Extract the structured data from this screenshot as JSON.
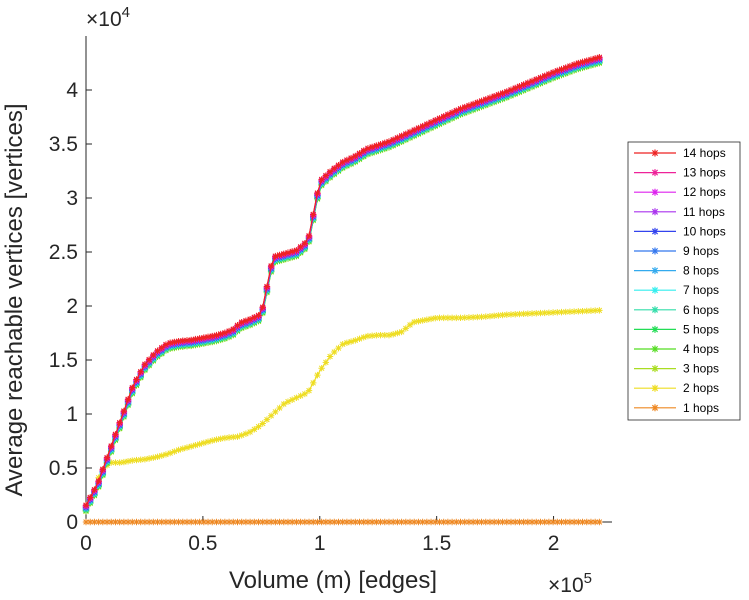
{
  "chart_data": {
    "type": "line",
    "xlabel": "Volume (m) [edges]",
    "ylabel": "Average reachable vertices [vertices]",
    "x_multiplier_label": "×10",
    "x_multiplier_exp": "5",
    "y_multiplier_label": "×10",
    "y_multiplier_exp": "4",
    "xlim": [
      0,
      225000
    ],
    "ylim": [
      0,
      45000
    ],
    "x_ticks": [
      0,
      50000,
      100000,
      150000,
      200000
    ],
    "x_tick_labels": [
      "0",
      "0.5",
      "1",
      "1.5",
      "2"
    ],
    "y_ticks": [
      0,
      5000,
      10000,
      15000,
      20000,
      25000,
      30000,
      35000,
      40000
    ],
    "y_tick_labels": [
      "0",
      "0.5",
      "1",
      "1.5",
      "2",
      "2.5",
      "3",
      "3.5",
      "4"
    ],
    "grid": false,
    "legend_position": "right",
    "curves": {
      "high": [
        [
          0,
          1000
        ],
        [
          5000,
          3000
        ],
        [
          10000,
          6000
        ],
        [
          15000,
          9000
        ],
        [
          20000,
          12000
        ],
        [
          25000,
          14000
        ],
        [
          30000,
          15200
        ],
        [
          35000,
          16000
        ],
        [
          40000,
          16200
        ],
        [
          45000,
          16300
        ],
        [
          50000,
          16500
        ],
        [
          55000,
          16700
        ],
        [
          60000,
          17000
        ],
        [
          63000,
          17300
        ],
        [
          66000,
          17900
        ],
        [
          70000,
          18200
        ],
        [
          75000,
          18700
        ],
        [
          80000,
          24000
        ],
        [
          85000,
          24300
        ],
        [
          90000,
          24600
        ],
        [
          95000,
          25500
        ],
        [
          100000,
          31000
        ],
        [
          105000,
          32000
        ],
        [
          110000,
          32800
        ],
        [
          115000,
          33300
        ],
        [
          120000,
          34000
        ],
        [
          130000,
          34700
        ],
        [
          140000,
          35700
        ],
        [
          150000,
          36700
        ],
        [
          160000,
          37700
        ],
        [
          170000,
          38500
        ],
        [
          180000,
          39300
        ],
        [
          190000,
          40200
        ],
        [
          200000,
          41100
        ],
        [
          210000,
          41900
        ],
        [
          220000,
          42500
        ]
      ],
      "mid": [
        [
          0,
          1000
        ],
        [
          3000,
          2500
        ],
        [
          6000,
          4500
        ],
        [
          10000,
          5500
        ],
        [
          15000,
          5500
        ],
        [
          20000,
          5700
        ],
        [
          25000,
          5800
        ],
        [
          30000,
          6000
        ],
        [
          35000,
          6300
        ],
        [
          40000,
          6700
        ],
        [
          45000,
          7000
        ],
        [
          50000,
          7300
        ],
        [
          55000,
          7600
        ],
        [
          60000,
          7800
        ],
        [
          65000,
          7900
        ],
        [
          70000,
          8300
        ],
        [
          75000,
          9000
        ],
        [
          80000,
          10000
        ],
        [
          85000,
          11000
        ],
        [
          90000,
          11500
        ],
        [
          95000,
          12000
        ],
        [
          100000,
          14000
        ],
        [
          105000,
          15500
        ],
        [
          110000,
          16500
        ],
        [
          115000,
          16800
        ],
        [
          120000,
          17200
        ],
        [
          125000,
          17300
        ],
        [
          130000,
          17300
        ],
        [
          135000,
          17600
        ],
        [
          140000,
          18500
        ],
        [
          150000,
          18900
        ],
        [
          160000,
          18900
        ],
        [
          170000,
          19000
        ],
        [
          180000,
          19200
        ],
        [
          190000,
          19300
        ],
        [
          200000,
          19400
        ],
        [
          210000,
          19500
        ],
        [
          220000,
          19600
        ]
      ],
      "flat": [
        [
          0,
          0
        ],
        [
          220000,
          0
        ]
      ]
    },
    "series": [
      {
        "name": "14 hops",
        "color": "#ee2222",
        "curve": "high"
      },
      {
        "name": "13 hops",
        "color": "#ee2299",
        "curve": "high"
      },
      {
        "name": "12 hops",
        "color": "#dd22ee",
        "curve": "high"
      },
      {
        "name": "11 hops",
        "color": "#aa33ee",
        "curve": "high"
      },
      {
        "name": "10 hops",
        "color": "#3344ee",
        "curve": "high"
      },
      {
        "name": "9 hops",
        "color": "#3377ee",
        "curve": "high"
      },
      {
        "name": "8 hops",
        "color": "#33aaee",
        "curve": "high"
      },
      {
        "name": "7 hops",
        "color": "#33eeee",
        "curve": "high"
      },
      {
        "name": "6 hops",
        "color": "#33ddaa",
        "curve": "high"
      },
      {
        "name": "5 hops",
        "color": "#22dd55",
        "curve": "high"
      },
      {
        "name": "4 hops",
        "color": "#55dd22",
        "curve": "high"
      },
      {
        "name": "3 hops",
        "color": "#aadd22",
        "curve": "high"
      },
      {
        "name": "2 hops",
        "color": "#eedd22",
        "curve": "mid"
      },
      {
        "name": "1 hops",
        "color": "#ee8822",
        "curve": "flat"
      }
    ]
  }
}
